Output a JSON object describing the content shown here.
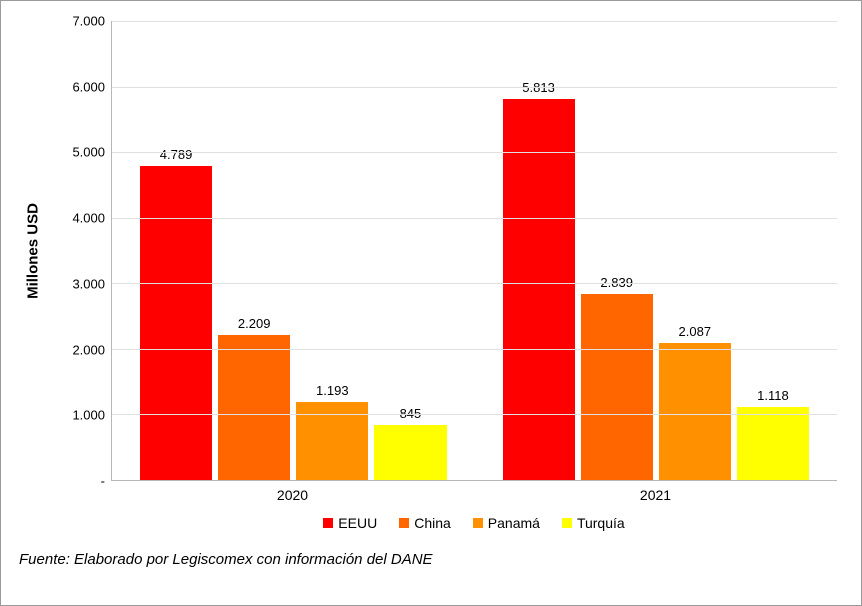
{
  "chart": {
    "type": "bar",
    "ylabel": "Millones USD",
    "ymax": 7000,
    "yticks": [
      {
        "v": 0,
        "label": "-"
      },
      {
        "v": 1000,
        "label": "1.000"
      },
      {
        "v": 2000,
        "label": "2.000"
      },
      {
        "v": 3000,
        "label": "3.000"
      },
      {
        "v": 4000,
        "label": "4.000"
      },
      {
        "v": 5000,
        "label": "5.000"
      },
      {
        "v": 6000,
        "label": "6.000"
      },
      {
        "v": 7000,
        "label": "7.000"
      }
    ],
    "series": [
      {
        "name": "EEUU",
        "color": "#ff0000"
      },
      {
        "name": "China",
        "color": "#ff6600"
      },
      {
        "name": "Panamá",
        "color": "#ff9100"
      },
      {
        "name": "Turquía",
        "color": "#ffff00"
      }
    ],
    "groups": [
      {
        "label": "2020",
        "bars": [
          {
            "value": 4789,
            "label": "4.789"
          },
          {
            "value": 2209,
            "label": "2.209"
          },
          {
            "value": 1193,
            "label": "1.193"
          },
          {
            "value": 845,
            "label": "845"
          }
        ]
      },
      {
        "label": "2021",
        "bars": [
          {
            "value": 5813,
            "label": "5.813"
          },
          {
            "value": 2839,
            "label": "2.839"
          },
          {
            "value": 2087,
            "label": "2.087"
          },
          {
            "value": 1118,
            "label": "1.118"
          }
        ]
      }
    ],
    "background_color": "#ffffff",
    "grid_color": "#e0e0e0",
    "axis_color": "#b7b7b7",
    "label_fontsize": 13,
    "ylabel_fontsize": 15
  },
  "source_text": "Fuente: Elaborado por Legiscomex con información del DANE"
}
